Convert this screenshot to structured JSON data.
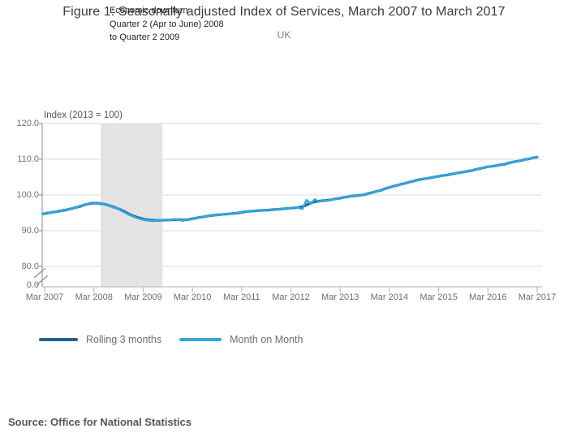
{
  "header": {
    "title": "Figure 1: Seasonally adjusted Index of Services, March 2007 to March 2017",
    "subtitle": "UK"
  },
  "annotation": {
    "lines": [
      "Economic downturn",
      "Quarter 2 (Apr to June) 2008",
      "to Quarter 2 2009"
    ]
  },
  "source": {
    "text": "Source: Office for National Statistics"
  },
  "colors": {
    "rolling_line": "#206095",
    "month_line": "#35a7dc",
    "recession_band": "#e4e4e4",
    "gridline": "#dcdcdc",
    "axis": "#8a8a8a",
    "baseline_ticks": "#aec3d0"
  },
  "chart_data": {
    "type": "line",
    "title": "Figure 1: Seasonally adjusted Index of Services, March 2007 to March 2017",
    "subtitle": "UK",
    "y_axis_title": "Index (2013 = 100)",
    "xlabel": "",
    "ylabel": "Index (2013 = 100)",
    "x_tick_labels": [
      "Mar 2007",
      "Mar 2008",
      "Mar 2009",
      "Mar 2010",
      "Mar 2011",
      "Mar 2012",
      "Mar 2013",
      "Mar 2014",
      "Mar 2015",
      "Mar 2016",
      "Mar 2017"
    ],
    "y_tick_labels": [
      "120.0",
      "110.0",
      "100.0",
      "90.0",
      "80.0",
      "0.0"
    ],
    "y_gridline_values": [
      120,
      110,
      100,
      90,
      80
    ],
    "ylim_display": [
      80,
      120
    ],
    "axis_break": true,
    "grid": "horizontal",
    "legend_position": "bottom",
    "x_frequency": "monthly",
    "x_range": "Mar 2007 to Mar 2017",
    "recession_band": {
      "label": "Economic downturn Quarter 2 (Apr to June) 2008 to Quarter 2 2009",
      "start_month_index": 14,
      "end_month_index": 29
    },
    "series": [
      {
        "name": "Rolling 3 months",
        "color": "#206095",
        "values": [
          94.7,
          94.9,
          95.1,
          95.3,
          95.5,
          95.7,
          95.9,
          96.2,
          96.5,
          96.8,
          97.2,
          97.5,
          97.7,
          97.7,
          97.6,
          97.4,
          97.1,
          96.7,
          96.3,
          95.8,
          95.2,
          94.6,
          94.1,
          93.7,
          93.4,
          93.1,
          93.0,
          92.9,
          92.9,
          92.9,
          93.0,
          93.0,
          93.1,
          93.1,
          93.0,
          93.1,
          93.3,
          93.5,
          93.7,
          93.9,
          94.1,
          94.3,
          94.4,
          94.5,
          94.6,
          94.7,
          94.8,
          94.9,
          95.1,
          95.3,
          95.4,
          95.5,
          95.6,
          95.7,
          95.7,
          95.8,
          95.9,
          96.0,
          96.1,
          96.2,
          96.3,
          96.4,
          96.5,
          96.7,
          97.2,
          97.8,
          98.1,
          98.3,
          98.4,
          98.5,
          98.7,
          98.9,
          99.1,
          99.3,
          99.5,
          99.7,
          99.8,
          99.9,
          100.1,
          100.4,
          100.7,
          101.0,
          101.3,
          101.7,
          102.1,
          102.4,
          102.7,
          103.0,
          103.3,
          103.6,
          103.9,
          104.2,
          104.4,
          104.6,
          104.8,
          105.0,
          105.2,
          105.4,
          105.6,
          105.8,
          106.0,
          106.2,
          106.4,
          106.6,
          106.8,
          107.1,
          107.4,
          107.6,
          107.9,
          108.0,
          108.2,
          108.4,
          108.6,
          108.9,
          109.2,
          109.4,
          109.6,
          109.9,
          110.1,
          110.4,
          110.6
        ]
      },
      {
        "name": "Month on Month",
        "color": "#35a7dc",
        "values": [
          94.6,
          95.1,
          95.0,
          95.4,
          95.3,
          95.9,
          95.8,
          96.3,
          96.4,
          97.0,
          97.1,
          97.6,
          97.9,
          97.5,
          97.8,
          97.3,
          97.2,
          96.5,
          96.4,
          95.6,
          95.0,
          94.4,
          93.9,
          93.5,
          93.2,
          92.9,
          92.8,
          92.7,
          93.1,
          92.8,
          93.1,
          92.9,
          93.2,
          93.0,
          92.8,
          93.2,
          93.2,
          93.6,
          93.6,
          94.0,
          94.0,
          94.4,
          94.3,
          94.6,
          94.5,
          94.8,
          94.7,
          95.0,
          95.2,
          95.4,
          95.3,
          95.6,
          95.5,
          95.8,
          95.6,
          95.9,
          95.8,
          96.1,
          96.0,
          96.4,
          96.2,
          96.6,
          96.4,
          96.1,
          98.6,
          97.5,
          98.8,
          98.1,
          98.6,
          98.3,
          98.8,
          98.8,
          99.2,
          99.2,
          99.6,
          99.6,
          99.9,
          99.8,
          100.2,
          100.3,
          100.8,
          100.9,
          101.4,
          101.6,
          102.2,
          102.3,
          102.8,
          102.9,
          103.4,
          103.5,
          104.0,
          104.1,
          104.5,
          104.5,
          104.9,
          104.9,
          105.3,
          105.3,
          105.7,
          105.7,
          106.1,
          106.1,
          106.5,
          106.5,
          106.9,
          107.0,
          107.5,
          107.5,
          108.0,
          107.9,
          108.3,
          108.3,
          108.7,
          108.8,
          109.3,
          109.3,
          109.7,
          109.8,
          110.2,
          110.3,
          110.7
        ]
      }
    ]
  }
}
